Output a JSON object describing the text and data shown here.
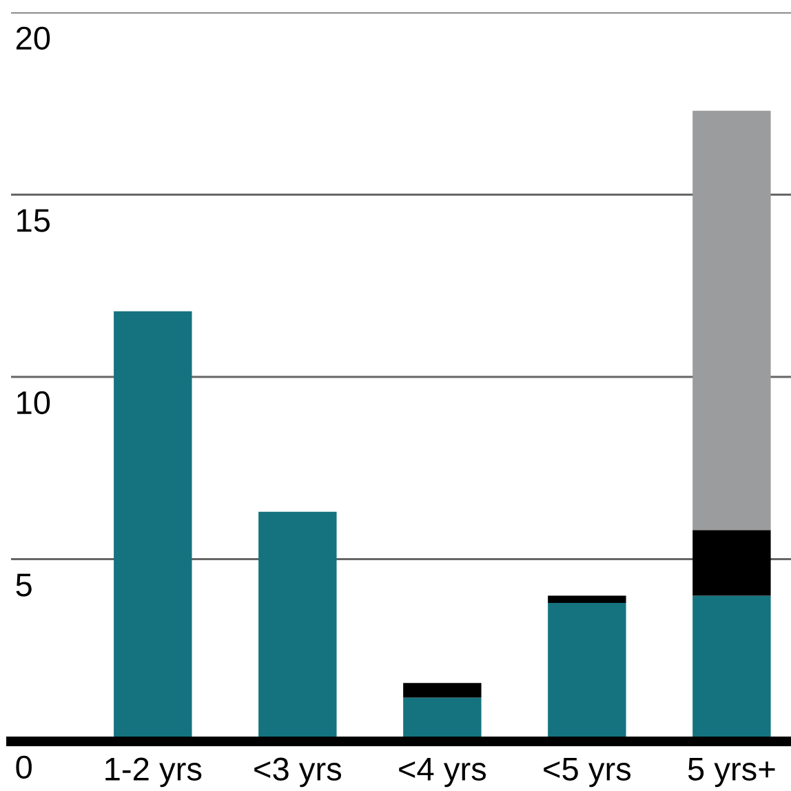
{
  "chart_data": {
    "type": "bar",
    "stacked": true,
    "categories": [
      "1-2 yrs",
      "<3 yrs",
      "<4 yrs",
      "<5 yrs",
      "5 yrs+"
    ],
    "series": [
      {
        "color": "#14737f",
        "values": [
          11.8,
          6.3,
          1.2,
          3.8,
          4.0
        ]
      },
      {
        "color": "#000000",
        "values": [
          0,
          0,
          0.4,
          0.2,
          1.8
        ]
      },
      {
        "color": "#9b9c9e",
        "values": [
          0,
          0,
          0,
          0,
          11.5
        ]
      }
    ],
    "ylim": [
      0,
      20
    ],
    "yticks": [
      0,
      5,
      10,
      15,
      20
    ],
    "grid": "y",
    "legend": false
  }
}
